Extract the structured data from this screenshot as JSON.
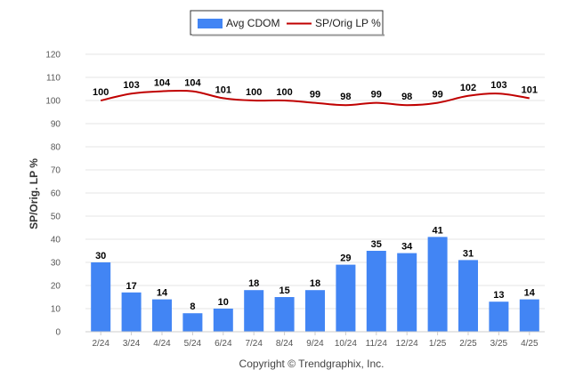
{
  "chart_data": {
    "type": "bar",
    "categories": [
      "2/24",
      "3/24",
      "4/24",
      "5/24",
      "6/24",
      "7/24",
      "8/24",
      "9/24",
      "10/24",
      "11/24",
      "12/24",
      "1/25",
      "2/25",
      "3/25",
      "4/25"
    ],
    "series": [
      {
        "name": "Avg CDOM",
        "type": "bar",
        "color": "#4285f4",
        "values": [
          30,
          17,
          14,
          8,
          10,
          18,
          15,
          18,
          29,
          35,
          34,
          41,
          31,
          13,
          14
        ]
      },
      {
        "name": "SP/Orig LP %",
        "type": "line",
        "color": "#c00000",
        "values": [
          100,
          103,
          104,
          104,
          101,
          100,
          100,
          99,
          98,
          99,
          98,
          99,
          102,
          103,
          101
        ]
      }
    ],
    "ylabel": "SP/Orig. LP %",
    "ylim": [
      0,
      120
    ],
    "yticks": [
      0,
      10,
      20,
      30,
      40,
      50,
      60,
      70,
      80,
      90,
      100,
      110,
      120
    ],
    "grid": true,
    "legend_position": "top-center"
  },
  "footer": {
    "copyright": "Copyright © Trendgraphix, Inc."
  }
}
